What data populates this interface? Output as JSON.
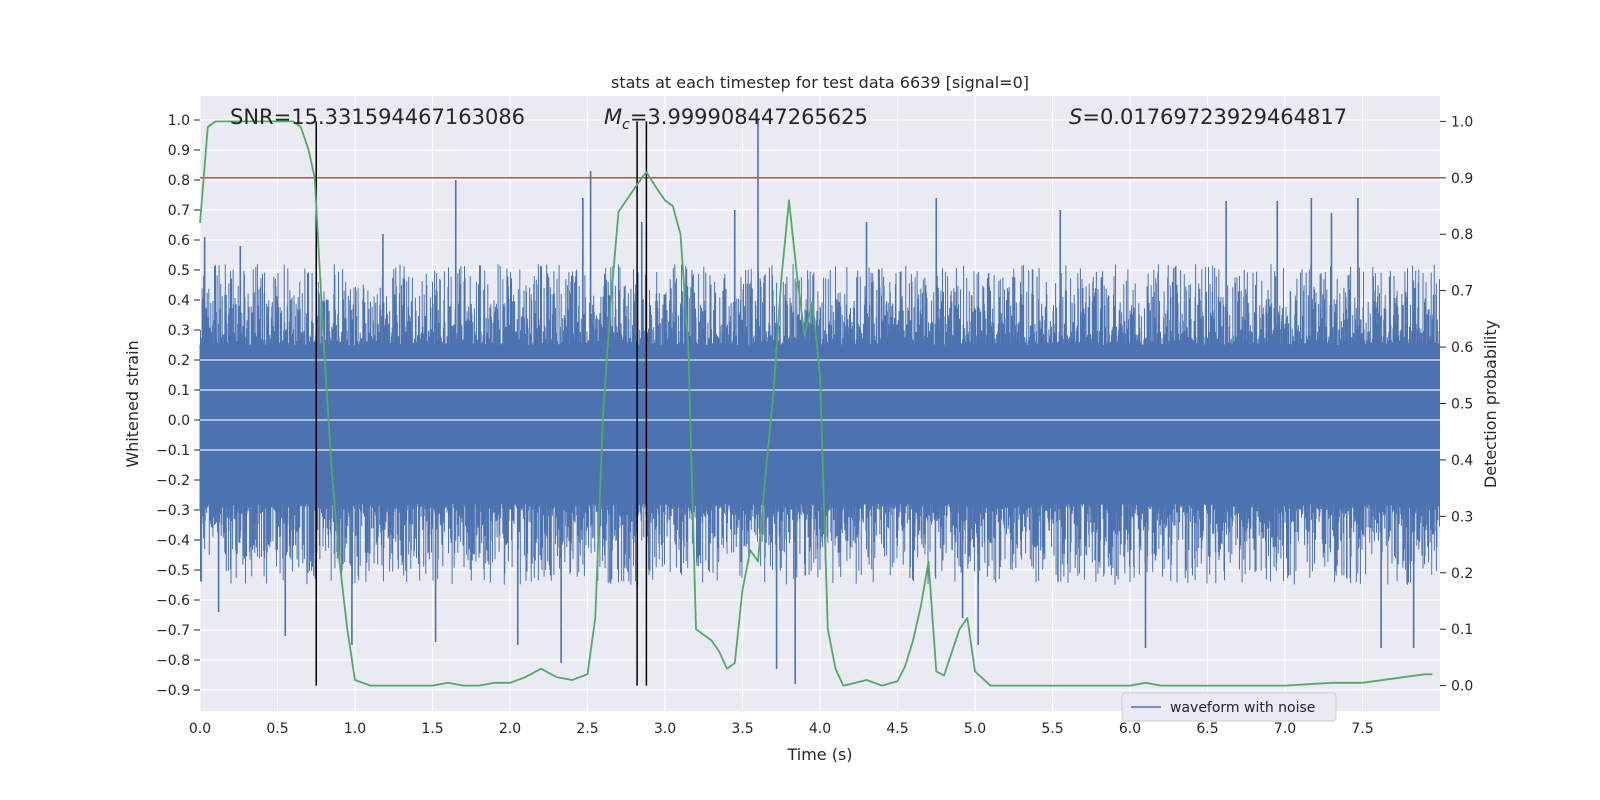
{
  "chart_data": {
    "type": "line",
    "title": "stats at each timestep for test data 6639 [signal=0]",
    "xlabel": "Time (s)",
    "ylabel": "Whitened strain",
    "y2label": "Detection probability",
    "xlim": [
      0.0,
      8.0
    ],
    "ylim": [
      -0.97,
      1.08
    ],
    "y2lim": [
      -0.045,
      1.045
    ],
    "xticks": [
      0.0,
      0.5,
      1.0,
      1.5,
      2.0,
      2.5,
      3.0,
      3.5,
      4.0,
      4.5,
      5.0,
      5.5,
      6.0,
      6.5,
      7.0,
      7.5
    ],
    "xtick_labels": [
      "0.0",
      "0.5",
      "1.0",
      "1.5",
      "2.0",
      "2.5",
      "3.0",
      "3.5",
      "4.0",
      "4.5",
      "5.0",
      "5.5",
      "6.0",
      "6.5",
      "7.0",
      "7.5"
    ],
    "yticks": [
      -0.9,
      -0.8,
      -0.7,
      -0.6,
      -0.5,
      -0.4,
      -0.3,
      -0.2,
      -0.1,
      0.0,
      0.1,
      0.2,
      0.3,
      0.4,
      0.5,
      0.6,
      0.7,
      0.8,
      0.9,
      1.0
    ],
    "ytick_labels": [
      "−0.9",
      "−0.8",
      "−0.7",
      "−0.6",
      "−0.5",
      "−0.4",
      "−0.3",
      "−0.2",
      "−0.1",
      "0.0",
      "0.1",
      "0.2",
      "0.3",
      "0.4",
      "0.5",
      "0.6",
      "0.7",
      "0.8",
      "0.9",
      "1.0"
    ],
    "y2ticks": [
      0.0,
      0.1,
      0.2,
      0.3,
      0.4,
      0.5,
      0.6,
      0.7,
      0.8,
      0.9,
      1.0
    ],
    "y2tick_labels": [
      "0.0",
      "0.1",
      "0.2",
      "0.3",
      "0.4",
      "0.5",
      "0.6",
      "0.7",
      "0.8",
      "0.9",
      "1.0"
    ],
    "grid": true,
    "legend_position": "bottom-right",
    "annotations": {
      "snr": "SNR=15.331594467163086",
      "mc_symbol": "M",
      "mc_sub": "c",
      "mc_value": "=3.999908447265625",
      "s_symbol": "S",
      "s_value": "=0.01769723929464817"
    },
    "series": [
      {
        "name": "waveform with noise",
        "kind": "noise",
        "color": "#4c72b0",
        "envelope_low": -0.55,
        "envelope_high": 0.52,
        "spikes": [
          {
            "x": 0.03,
            "y": 0.61
          },
          {
            "x": 0.12,
            "y": -0.64
          },
          {
            "x": 0.26,
            "y": 0.58
          },
          {
            "x": 0.55,
            "y": -0.72
          },
          {
            "x": 0.98,
            "y": -0.75
          },
          {
            "x": 1.18,
            "y": 0.62
          },
          {
            "x": 1.52,
            "y": -0.74
          },
          {
            "x": 1.65,
            "y": 0.8
          },
          {
            "x": 2.05,
            "y": -0.75
          },
          {
            "x": 2.33,
            "y": -0.81
          },
          {
            "x": 2.47,
            "y": 0.74
          },
          {
            "x": 2.52,
            "y": 0.83
          },
          {
            "x": 2.85,
            "y": 0.66
          },
          {
            "x": 3.6,
            "y": 1.0
          },
          {
            "x": 3.72,
            "y": -0.83
          },
          {
            "x": 3.84,
            "y": -0.88
          },
          {
            "x": 3.45,
            "y": 0.7
          },
          {
            "x": 4.3,
            "y": 0.66
          },
          {
            "x": 4.75,
            "y": 0.74
          },
          {
            "x": 5.02,
            "y": -0.75
          },
          {
            "x": 5.55,
            "y": 0.7
          },
          {
            "x": 6.1,
            "y": -0.76
          },
          {
            "x": 6.62,
            "y": 0.73
          },
          {
            "x": 6.95,
            "y": 0.73
          },
          {
            "x": 7.17,
            "y": 0.74
          },
          {
            "x": 7.47,
            "y": 0.74
          },
          {
            "x": 7.62,
            "y": -0.76
          },
          {
            "x": 7.83,
            "y": -0.76
          },
          {
            "x": 7.3,
            "y": 0.69
          },
          {
            "x": 4.92,
            "y": -0.66
          }
        ]
      },
      {
        "name": "",
        "kind": "probability",
        "color": "#55a868",
        "x": [
          0.0,
          0.05,
          0.1,
          0.15,
          0.2,
          0.3,
          0.4,
          0.5,
          0.6,
          0.65,
          0.7,
          0.74,
          0.8,
          0.85,
          0.9,
          0.95,
          1.0,
          1.1,
          1.2,
          1.3,
          1.4,
          1.5,
          1.6,
          1.7,
          1.8,
          1.9,
          2.0,
          2.1,
          2.2,
          2.3,
          2.4,
          2.5,
          2.55,
          2.6,
          2.65,
          2.7,
          2.8,
          2.85,
          2.88,
          2.95,
          3.0,
          3.05,
          3.1,
          3.15,
          3.2,
          3.3,
          3.35,
          3.4,
          3.45,
          3.5,
          3.55,
          3.6,
          3.65,
          3.7,
          3.75,
          3.8,
          3.85,
          3.9,
          3.95,
          4.0,
          4.05,
          4.1,
          4.15,
          4.2,
          4.3,
          4.4,
          4.5,
          4.55,
          4.6,
          4.65,
          4.7,
          4.75,
          4.8,
          4.9,
          4.95,
          5.0,
          5.1,
          5.5,
          6.0,
          6.1,
          6.2,
          6.5,
          7.0,
          7.3,
          7.5,
          7.9,
          7.95
        ],
        "y": [
          0.82,
          0.99,
          1.0,
          1.0,
          1.0,
          1.0,
          1.0,
          1.0,
          1.0,
          0.99,
          0.95,
          0.9,
          0.6,
          0.38,
          0.22,
          0.1,
          0.01,
          0.0,
          0.0,
          0.0,
          0.0,
          0.0,
          0.005,
          0.0,
          0.0,
          0.005,
          0.005,
          0.015,
          0.03,
          0.015,
          0.01,
          0.02,
          0.12,
          0.48,
          0.68,
          0.84,
          0.88,
          0.9,
          0.91,
          0.88,
          0.86,
          0.85,
          0.8,
          0.6,
          0.1,
          0.08,
          0.06,
          0.03,
          0.04,
          0.17,
          0.24,
          0.22,
          0.38,
          0.52,
          0.72,
          0.86,
          0.73,
          0.62,
          0.68,
          0.55,
          0.1,
          0.03,
          0.0,
          0.003,
          0.01,
          0.0,
          0.008,
          0.035,
          0.08,
          0.14,
          0.22,
          0.025,
          0.018,
          0.1,
          0.12,
          0.025,
          0.0,
          0.0,
          0.0,
          0.005,
          0.0,
          0.0,
          0.0,
          0.005,
          0.005,
          0.02,
          0.02
        ]
      }
    ],
    "threshold": {
      "y2": 0.9,
      "color": "#c44e52"
    },
    "vertical_lines": [
      0.75,
      2.82,
      2.88
    ]
  }
}
